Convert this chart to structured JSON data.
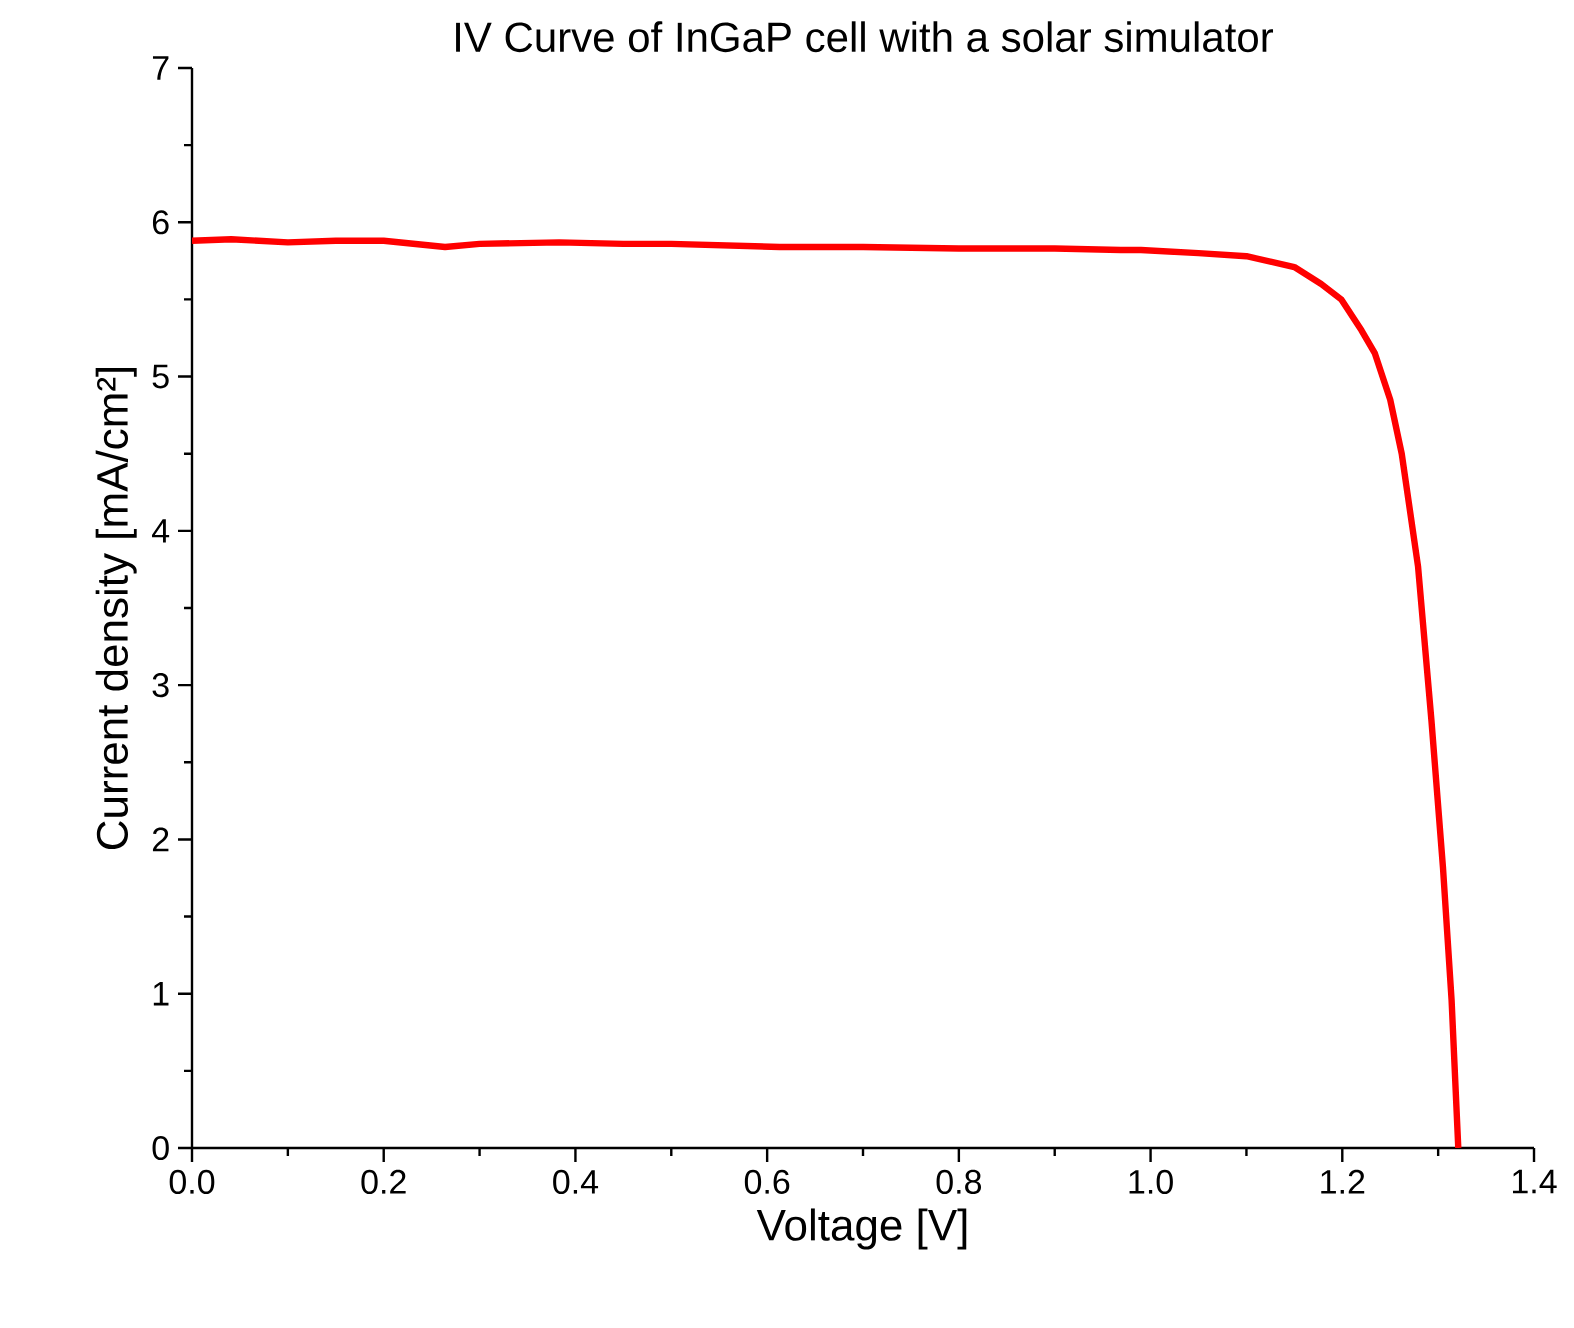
{
  "chart_data": {
    "type": "line",
    "title": "IV Curve of InGaP cell with a solar simulator",
    "xlabel": "Voltage [V]",
    "ylabel": "Current density [mA/cm²]",
    "x": [
      0,
      0.041,
      0.1,
      0.15,
      0.2,
      0.264,
      0.3,
      0.383,
      0.45,
      0.5,
      0.613,
      0.7,
      0.8,
      0.9,
      0.969,
      0.99,
      1.05,
      1.1,
      1.15,
      1.178,
      1.199,
      1.22,
      1.234,
      1.25,
      1.262,
      1.279,
      1.293,
      1.305,
      1.314,
      1.321
    ],
    "series": [
      {
        "color": "#ff0000",
        "values": [
          5.88,
          5.89,
          5.87,
          5.88,
          5.88,
          5.84,
          5.86,
          5.87,
          5.86,
          5.86,
          5.84,
          5.84,
          5.83,
          5.83,
          5.82,
          5.82,
          5.8,
          5.78,
          5.71,
          5.6,
          5.5,
          5.3,
          5.15,
          4.85,
          4.5,
          3.77,
          2.77,
          1.82,
          0.96,
          0
        ]
      }
    ],
    "xlim": [
      0,
      1.4
    ],
    "ylim": [
      0,
      7
    ],
    "xticks": [
      {
        "value": 0,
        "label": "0.0"
      },
      0.2,
      0.4,
      0.6,
      0.8,
      {
        "value": 1,
        "label": "1.0"
      },
      1.2,
      1.4
    ],
    "yticks": [
      0,
      1,
      2,
      3,
      4,
      5,
      6,
      7
    ],
    "marker": "none",
    "line_style": "solid"
  }
}
